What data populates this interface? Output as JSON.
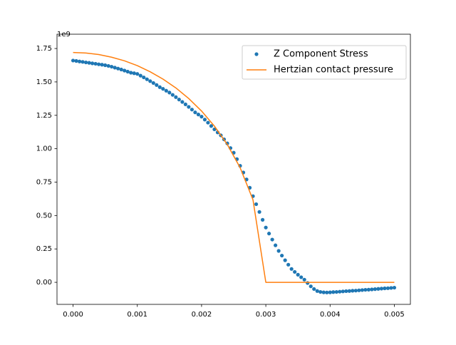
{
  "chart_data": {
    "type": "line",
    "y_offset_label": "1e9",
    "xlim": [
      -0.00025,
      0.00525
    ],
    "ylim": [
      -0.165,
      1.857
    ],
    "xticks": [
      {
        "value": 0,
        "label": "0.000"
      },
      {
        "value": 0.001,
        "label": "0.001"
      },
      {
        "value": 0.002,
        "label": "0.002"
      },
      {
        "value": 0.003,
        "label": "0.003"
      },
      {
        "value": 0.004,
        "label": "0.004"
      },
      {
        "value": 0.005,
        "label": "0.005"
      }
    ],
    "yticks": [
      {
        "value": 0,
        "label": "0.00"
      },
      {
        "value": 0.25,
        "label": "0.25"
      },
      {
        "value": 0.5,
        "label": "0.50"
      },
      {
        "value": 0.75,
        "label": "0.75"
      },
      {
        "value": 1,
        "label": "1.00"
      },
      {
        "value": 1.25,
        "label": "1.25"
      },
      {
        "value": 1.5,
        "label": "1.50"
      },
      {
        "value": 1.75,
        "label": "1.75"
      }
    ],
    "legend": "upper right",
    "series": [
      {
        "name": "Z Component Stress",
        "color": "#1f77b4",
        "mode": "markers",
        "x": [
          0,
          5e-05,
          0.0001,
          0.00015,
          0.0002,
          0.00025,
          0.0003,
          0.00035,
          0.0004,
          0.00045,
          0.0005,
          0.00055,
          0.0006,
          0.00065,
          0.0007,
          0.00075,
          0.0008,
          0.00085,
          0.0009,
          0.00095,
          0.001,
          0.00105,
          0.0011,
          0.00115,
          0.0012,
          0.00125,
          0.0013,
          0.00135,
          0.0014,
          0.00145,
          0.0015,
          0.00155,
          0.0016,
          0.00165,
          0.0017,
          0.00175,
          0.0018,
          0.00185,
          0.0019,
          0.00195,
          0.002,
          0.00205,
          0.0021,
          0.00215,
          0.0022,
          0.00225,
          0.0023,
          0.00235,
          0.0024,
          0.00245,
          0.0025,
          0.00255,
          0.0026,
          0.00265,
          0.0027,
          0.00275,
          0.0028,
          0.00285,
          0.0029,
          0.00295,
          0.003,
          0.00305,
          0.0031,
          0.00315,
          0.0032,
          0.00325,
          0.0033,
          0.00335,
          0.0034,
          0.00345,
          0.0035,
          0.00355,
          0.0036,
          0.00365,
          0.0037,
          0.00375,
          0.0038,
          0.00385,
          0.0039,
          0.00395,
          0.004,
          0.00405,
          0.0041,
          0.00415,
          0.0042,
          0.00425,
          0.0043,
          0.00435,
          0.0044,
          0.00445,
          0.0045,
          0.00455,
          0.0046,
          0.00465,
          0.0047,
          0.00475,
          0.0048,
          0.00485,
          0.0049,
          0.00495,
          0.005
        ],
        "values": [
          1.66,
          1.657,
          1.653,
          1.65,
          1.646,
          1.643,
          1.639,
          1.636,
          1.632,
          1.629,
          1.625,
          1.62,
          1.614,
          1.607,
          1.6,
          1.593,
          1.585,
          1.577,
          1.569,
          1.565,
          1.56,
          1.547,
          1.534,
          1.52,
          1.506,
          1.492,
          1.477,
          1.461,
          1.448,
          1.434,
          1.42,
          1.403,
          1.386,
          1.368,
          1.35,
          1.332,
          1.313,
          1.293,
          1.272,
          1.256,
          1.24,
          1.218,
          1.195,
          1.17,
          1.145,
          1.122,
          1.1,
          1.07,
          1.04,
          1.005,
          0.97,
          0.922,
          0.872,
          0.822,
          0.77,
          0.708,
          0.645,
          0.585,
          0.527,
          0.468,
          0.41,
          0.365,
          0.32,
          0.277,
          0.235,
          0.2,
          0.165,
          0.132,
          0.1,
          0.078,
          0.057,
          0.038,
          0.02,
          -0.005,
          -0.03,
          -0.05,
          -0.065,
          -0.072,
          -0.075,
          -0.076,
          -0.075,
          -0.073,
          -0.072,
          -0.07,
          -0.068,
          -0.066,
          -0.065,
          -0.063,
          -0.062,
          -0.06,
          -0.058,
          -0.056,
          -0.055,
          -0.053,
          -0.051,
          -0.049,
          -0.047,
          -0.045,
          -0.044,
          -0.042,
          -0.04
        ]
      },
      {
        "name": "Hertzian contact pressure",
        "color": "#ff7f0e",
        "mode": "line",
        "x": [
          0,
          0.0002,
          0.0004,
          0.0006,
          0.0008,
          0.001,
          0.0012,
          0.0014,
          0.0016,
          0.0018,
          0.002,
          0.0022,
          0.0024,
          0.0026,
          0.0028,
          0.003,
          0.0032,
          0.0034,
          0.0036,
          0.0038,
          0.004,
          0.0042,
          0.0044,
          0.0046,
          0.0048,
          0.005
        ],
        "values": [
          1.72,
          1.716,
          1.705,
          1.685,
          1.658,
          1.622,
          1.576,
          1.521,
          1.455,
          1.376,
          1.282,
          1.169,
          1.032,
          0.858,
          0.618,
          0,
          0,
          0,
          0,
          0,
          0,
          0,
          0,
          0,
          0,
          0
        ]
      }
    ]
  }
}
